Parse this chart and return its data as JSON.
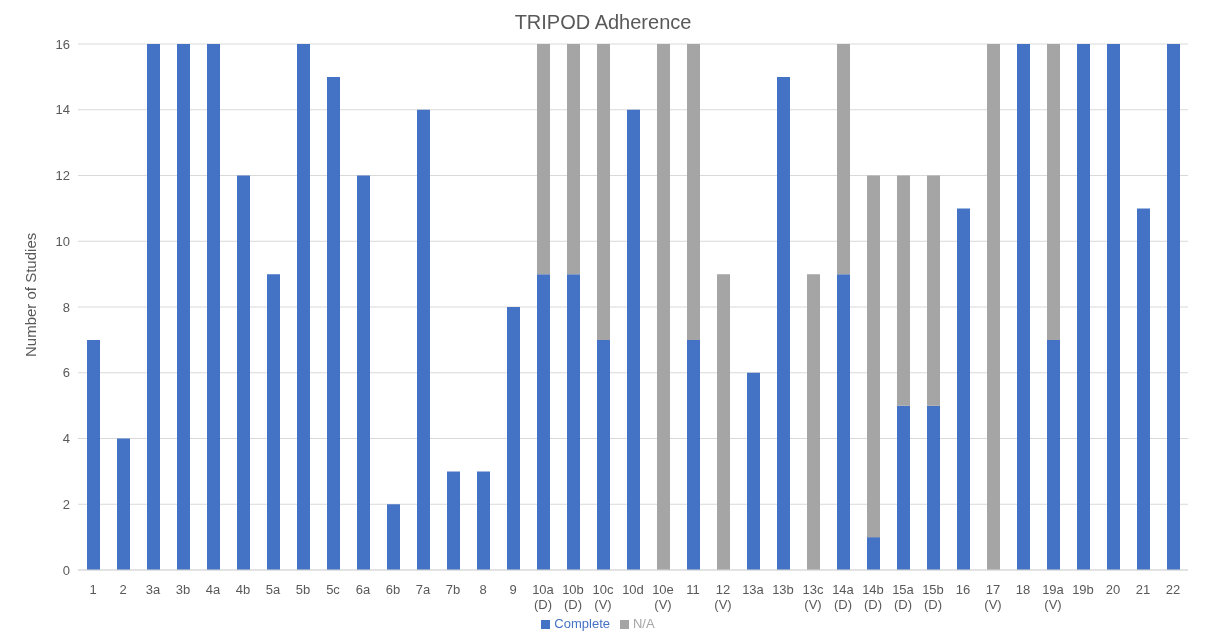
{
  "chart_data": {
    "type": "bar",
    "title": "TRIPOD Adherence",
    "ylabel": "Number of Studies",
    "stacked": true,
    "grid": "y",
    "legend": "bottom",
    "categories": [
      "1",
      "2",
      "3a",
      "3b",
      "4a",
      "4b",
      "5a",
      "5b",
      "5c",
      "6a",
      "6b",
      "7a",
      "7b",
      "8",
      "9",
      "10a (D)",
      "10b (D)",
      "10c (V)",
      "10d",
      "10e (V)",
      "11",
      "12 (V)",
      "13a",
      "13b",
      "13c (V)",
      "14a (D)",
      "14b (D)",
      "15a (D)",
      "15b (D)",
      "16",
      "17 (V)",
      "18",
      "19a (V)",
      "19b",
      "20",
      "21",
      "22"
    ],
    "series": [
      {
        "name": "Complete",
        "color": "#4472c4",
        "values": [
          7,
          4,
          16,
          16,
          16,
          12,
          9,
          16,
          15,
          12,
          2,
          14,
          3,
          3,
          8,
          9,
          9,
          7,
          14,
          0,
          7,
          0,
          6,
          15,
          0,
          9,
          1,
          5,
          5,
          11,
          0,
          16,
          7,
          16,
          16,
          11,
          16
        ]
      },
      {
        "name": "N/A",
        "color": "#a5a5a5",
        "values": [
          0,
          0,
          0,
          0,
          0,
          0,
          0,
          0,
          0,
          0,
          0,
          0,
          0,
          0,
          0,
          7,
          7,
          9,
          0,
          16,
          9,
          9,
          0,
          0,
          9,
          7,
          11,
          7,
          7,
          0,
          16,
          0,
          9,
          0,
          0,
          0,
          0
        ]
      }
    ],
    "ylim": [
      0,
      16
    ],
    "yticks": [
      0,
      2,
      4,
      6,
      8,
      10,
      12,
      14,
      16
    ]
  }
}
